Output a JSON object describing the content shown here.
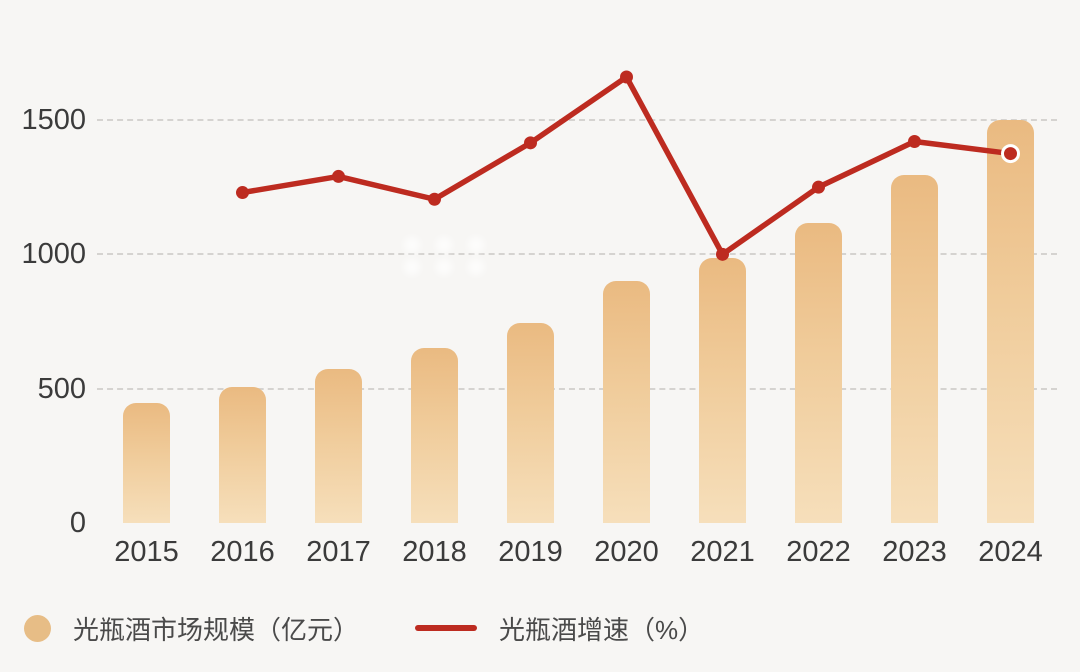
{
  "colors": {
    "background": "#f7f6f4",
    "bar_gradient_top": "#eaba81",
    "bar_gradient_bottom": "#f6dfbb",
    "line": "#bd2b20",
    "marker_ring": "#ffffff",
    "gridline": "#d5d3d0",
    "tick_text": "#3b3b3b",
    "legend_text": "#4a4a4a"
  },
  "legend": {
    "bar_label": "光瓶酒市场规模（亿元）",
    "line_label": "光瓶酒增速（%）"
  },
  "chart_data": {
    "type": "bar+line combo",
    "categories": [
      "2015",
      "2016",
      "2017",
      "2018",
      "2019",
      "2020",
      "2021",
      "2022",
      "2023",
      "2024"
    ],
    "yticks": [
      0,
      500,
      1000,
      1500
    ],
    "ylim": [
      0,
      1500
    ],
    "grid": "dashed horizontal lines at 500/1000/1500, none at 0",
    "legend_position": "bottom-left",
    "series": [
      {
        "name": "光瓶酒市场规模（亿元）",
        "type": "bar",
        "values": [
          445,
          505,
          575,
          650,
          745,
          900,
          985,
          1115,
          1295,
          1500
        ]
      },
      {
        "name": "光瓶酒增速（%）",
        "type": "line",
        "axis_note": "plotted on a hidden secondary axis; values below are left-axis-equivalent heights read from the pixels; starts at 2016",
        "values": [
          null,
          1230,
          1290,
          1205,
          1415,
          1660,
          1000,
          1250,
          1420,
          1375
        ],
        "last_marker_highlighted": true
      }
    ]
  },
  "watermark": {
    "description": "faint white dot cluster",
    "dots_rows": 2,
    "dots_per_row": 3
  }
}
